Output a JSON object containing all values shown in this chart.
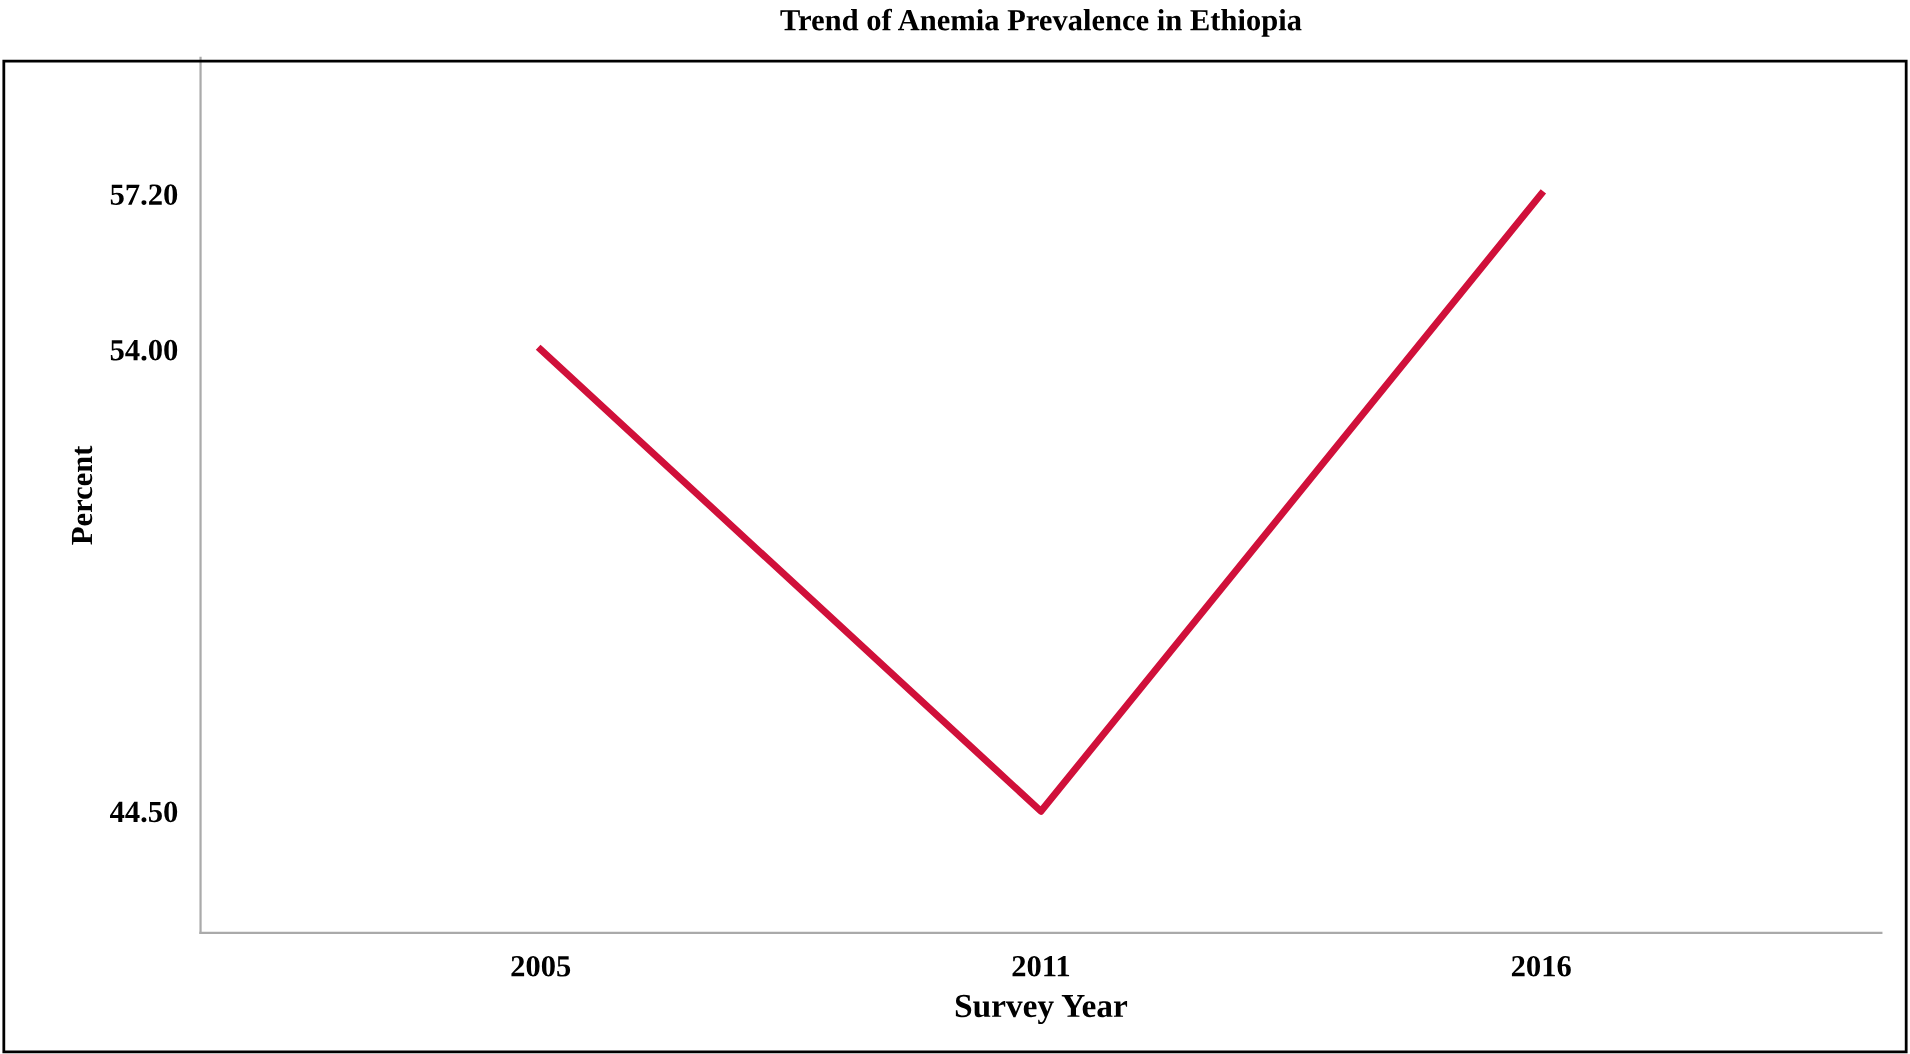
{
  "chart_data": {
    "type": "line",
    "title": "Trend of Anemia Prevalence in Ethiopia",
    "xlabel": "Survey Year",
    "ylabel": "Percent",
    "categories": [
      "2005",
      "2011",
      "2016"
    ],
    "series": [
      {
        "color": "#d0103a",
        "values": [
          54.0,
          44.5,
          57.2
        ]
      }
    ],
    "ylim": [
      42,
      60
    ],
    "yticks": [
      {
        "value": 44.5,
        "label": "44.50"
      },
      {
        "value": 54.0,
        "label": "54.00"
      },
      {
        "value": 57.2,
        "label": "57.20"
      }
    ],
    "grid": false,
    "marker": "none",
    "line_style": "solid"
  }
}
